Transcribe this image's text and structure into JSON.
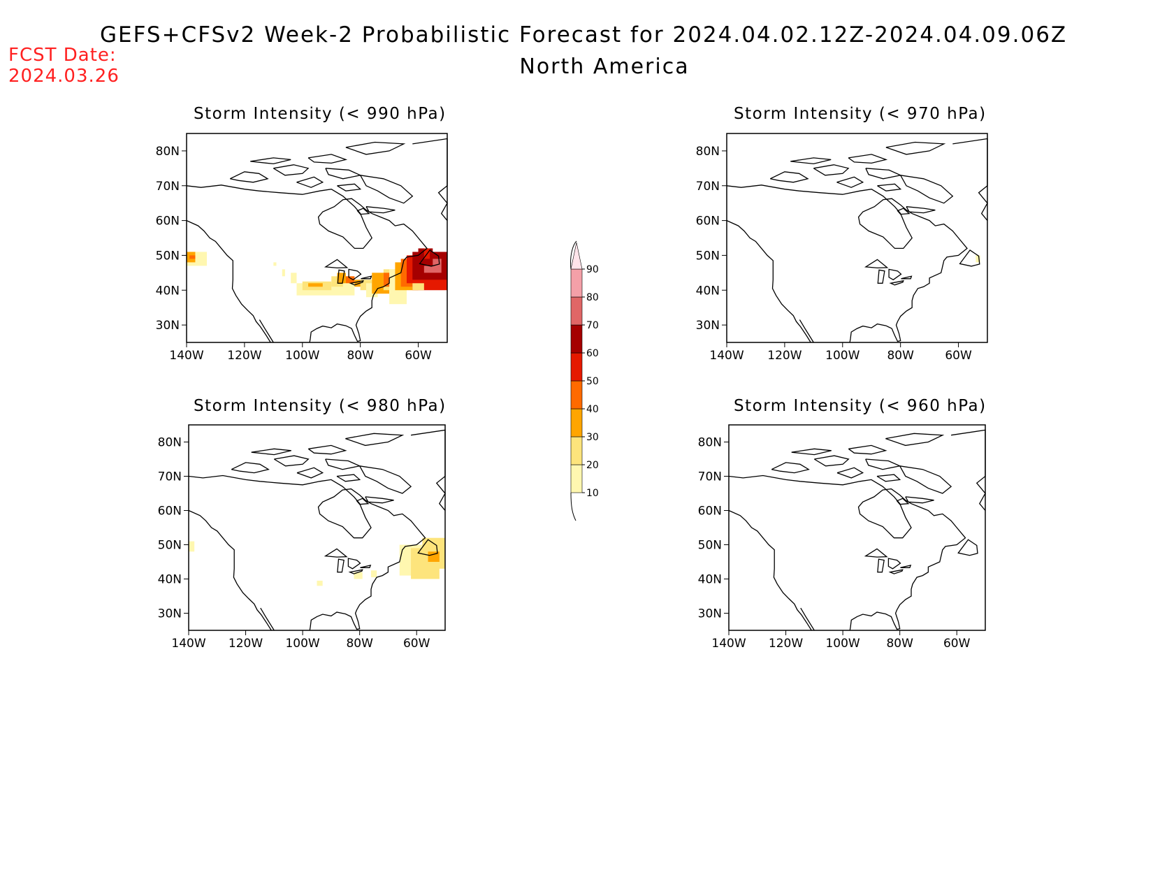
{
  "header": {
    "title": "GEFS+CFSv2 Week-2 Probabilistic Forecast for 2024.04.02.12Z-2024.04.09.06Z",
    "subtitle": "North America",
    "fcst_label": "FCST Date:",
    "fcst_date": "2024.03.26"
  },
  "axes": {
    "lat_labels": [
      "80N",
      "70N",
      "60N",
      "50N",
      "40N",
      "30N"
    ],
    "lon_labels": [
      "140W",
      "120W",
      "100W",
      "80W",
      "60W"
    ]
  },
  "panels": [
    {
      "id": "p990",
      "title": "Storm Intensity (< 990 hPa)",
      "max_probability_percent": 70,
      "region_of_max": "Atlantic Canada / Newfoundland"
    },
    {
      "id": "p970",
      "title": "Storm Intensity (< 970 hPa)",
      "max_probability_percent": 10,
      "region_of_max": "Newfoundland"
    },
    {
      "id": "p980",
      "title": "Storm Intensity (< 980 hPa)",
      "max_probability_percent": 30,
      "region_of_max": "Atlantic Canada"
    },
    {
      "id": "p960",
      "title": "Storm Intensity (< 960 hPa)",
      "max_probability_percent": 0,
      "region_of_max": ""
    }
  ],
  "colorbar": {
    "levels": [
      "10",
      "20",
      "30",
      "40",
      "50",
      "60",
      "70",
      "80",
      "90"
    ],
    "colors": [
      "#fff7b0",
      "#fde47c",
      "#ffa500",
      "#ff6a00",
      "#e51900",
      "#a50000",
      "#e06666",
      "#f4a0a8",
      "#ffe4ea"
    ]
  }
}
